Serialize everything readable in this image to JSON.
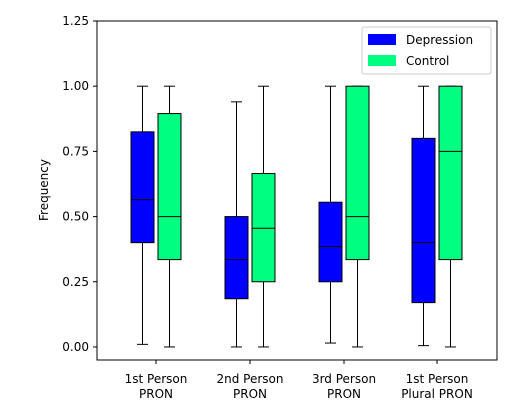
{
  "chart_data": {
    "type": "boxplot",
    "title": "",
    "xlabel": "",
    "ylabel": "Frequency",
    "ylim": [
      -0.05,
      1.25
    ],
    "yticks": [
      "0.00",
      "0.25",
      "0.50",
      "0.75",
      "1.00",
      "1.25"
    ],
    "categories": [
      [
        "1st Person",
        "PRON"
      ],
      [
        "2nd Person",
        "PRON"
      ],
      [
        "3rd Person",
        "PRON"
      ],
      [
        "1st Person",
        "Plural PRON"
      ]
    ],
    "legend_position": "top-right",
    "series": [
      {
        "name": "Depression",
        "color": "#0000ff",
        "boxes": [
          {
            "min": 0.01,
            "q1": 0.4,
            "median": 0.565,
            "q3": 0.825,
            "max": 1.0
          },
          {
            "min": 0.0,
            "q1": 0.185,
            "median": 0.335,
            "q3": 0.5,
            "max": 0.94
          },
          {
            "min": 0.015,
            "q1": 0.25,
            "median": 0.385,
            "q3": 0.555,
            "max": 1.0
          },
          {
            "min": 0.005,
            "q1": 0.17,
            "median": 0.4,
            "q3": 0.8,
            "max": 1.0
          }
        ]
      },
      {
        "name": "Control",
        "color": "#00ff80",
        "boxes": [
          {
            "min": 0.0,
            "q1": 0.335,
            "median": 0.5,
            "q3": 0.895,
            "max": 1.0
          },
          {
            "min": 0.0,
            "q1": 0.25,
            "median": 0.455,
            "q3": 0.665,
            "max": 1.0
          },
          {
            "min": 0.0,
            "q1": 0.335,
            "median": 0.5,
            "q3": 1.0,
            "max": 1.0
          },
          {
            "min": 0.0,
            "q1": 0.335,
            "median": 0.75,
            "q3": 1.0,
            "max": 1.0
          }
        ]
      }
    ]
  }
}
